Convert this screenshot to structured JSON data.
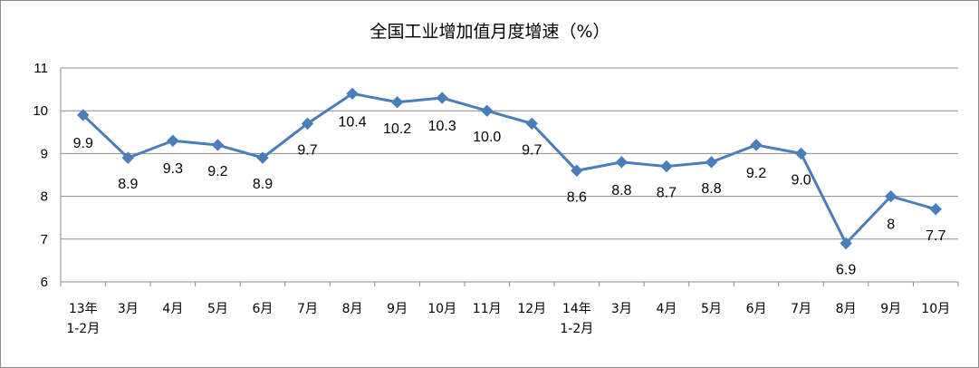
{
  "chart_data": {
    "type": "line",
    "title": "全国工业增加值月度增速（%）",
    "categories": [
      [
        "13年",
        "1-2月"
      ],
      [
        "3月"
      ],
      [
        "4月"
      ],
      [
        "5月"
      ],
      [
        "6月"
      ],
      [
        "7月"
      ],
      [
        "8月"
      ],
      [
        "9月"
      ],
      [
        "10月"
      ],
      [
        "11月"
      ],
      [
        "12月"
      ],
      [
        "14年",
        "1-2月"
      ],
      [
        "3月"
      ],
      [
        "4月"
      ],
      [
        "5月"
      ],
      [
        "6月"
      ],
      [
        "7月"
      ],
      [
        "8月"
      ],
      [
        "9月"
      ],
      [
        "10月"
      ]
    ],
    "series": [
      {
        "values": [
          9.9,
          8.9,
          9.3,
          9.2,
          8.9,
          9.7,
          10.4,
          10.2,
          10.3,
          10.0,
          9.7,
          8.6,
          8.8,
          8.7,
          8.8,
          9.2,
          9.0,
          6.9,
          8.0,
          7.7
        ],
        "labels": [
          "9.9",
          "8.9",
          "9.3",
          "9.2",
          "8.9",
          "9.7",
          "10.4",
          "10.2",
          "10.3",
          "10.0",
          "9.7",
          "8.6",
          "8.8",
          "8.7",
          "8.8",
          "9.2",
          "9.0",
          "6.9",
          "8",
          "7.7"
        ],
        "color": "#4a7ebb"
      }
    ],
    "ylim": [
      6,
      11
    ],
    "yticks": [
      6,
      7,
      8,
      9,
      10,
      11
    ],
    "grid": true,
    "legend": "none"
  }
}
